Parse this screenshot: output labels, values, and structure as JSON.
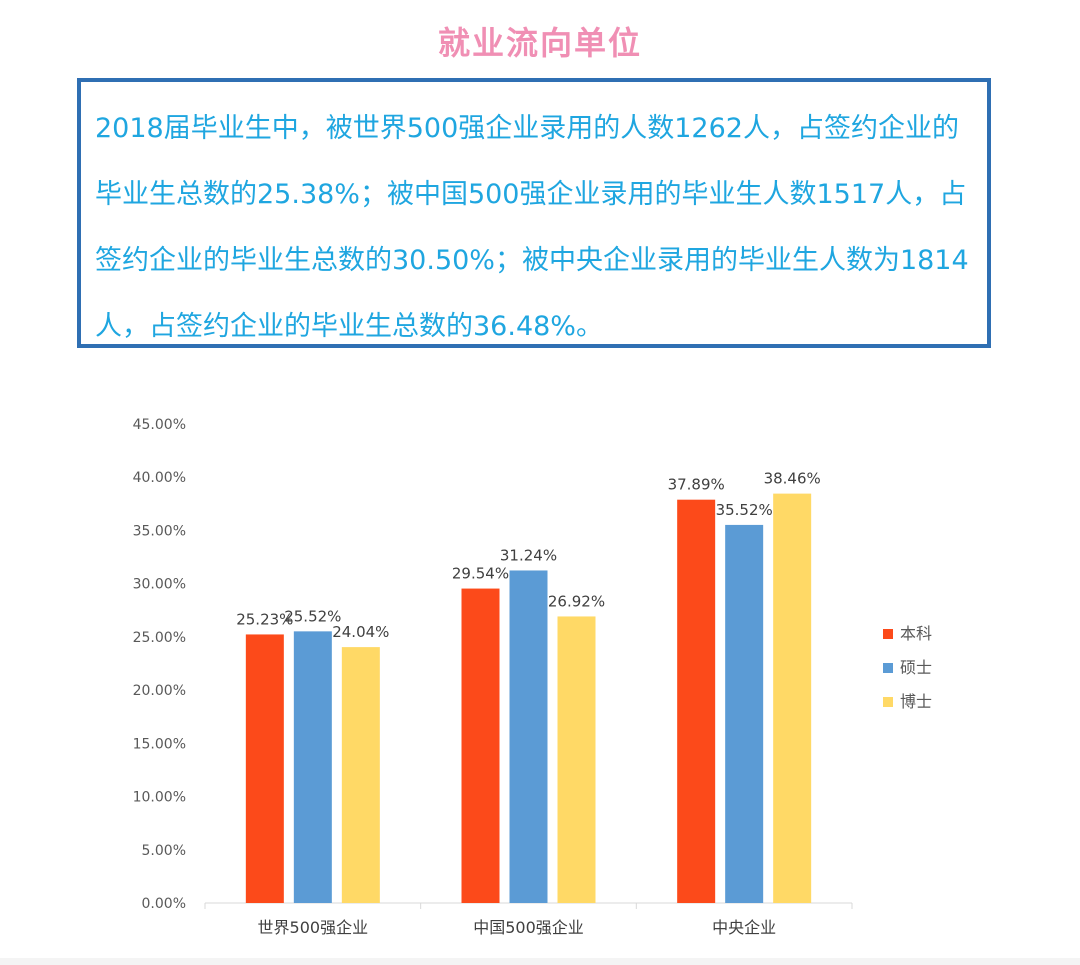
{
  "page": {
    "title": "就业流向单位",
    "intro": "2018届毕业生中，被世界500强企业录用的人数1262人，占签约企业的毕业生总数的25.38%；被中国500强企业录用的毕业生人数1517人，占签约企业的毕业生总数的30.50%；被中央企业录用的毕业生人数为1814人，占签约企业的毕业生总数的36.48%。"
  },
  "chart_data": {
    "type": "bar",
    "categories": [
      "世界500强企业",
      "中国500强企业",
      "中央企业"
    ],
    "series": [
      {
        "name": "本科",
        "color": "#fc4a1a",
        "values": [
          25.23,
          29.54,
          37.89
        ],
        "labels": [
          "25.23%",
          "29.54%",
          "37.89%"
        ]
      },
      {
        "name": "硕士",
        "color": "#5b9bd5",
        "values": [
          25.52,
          31.24,
          35.52
        ],
        "labels": [
          "25.52%",
          "31.24%",
          "35.52%"
        ]
      },
      {
        "name": "博士",
        "color": "#ffd966",
        "values": [
          24.04,
          26.92,
          38.46
        ],
        "labels": [
          "24.04%",
          "26.92%",
          "38.46%"
        ]
      }
    ],
    "ylim": [
      0,
      45
    ],
    "yticks": [
      "0.00%",
      "5.00%",
      "10.00%",
      "15.00%",
      "20.00%",
      "25.00%",
      "30.00%",
      "35.00%",
      "40.00%",
      "45.00%"
    ],
    "legend": "right",
    "grid": false
  }
}
